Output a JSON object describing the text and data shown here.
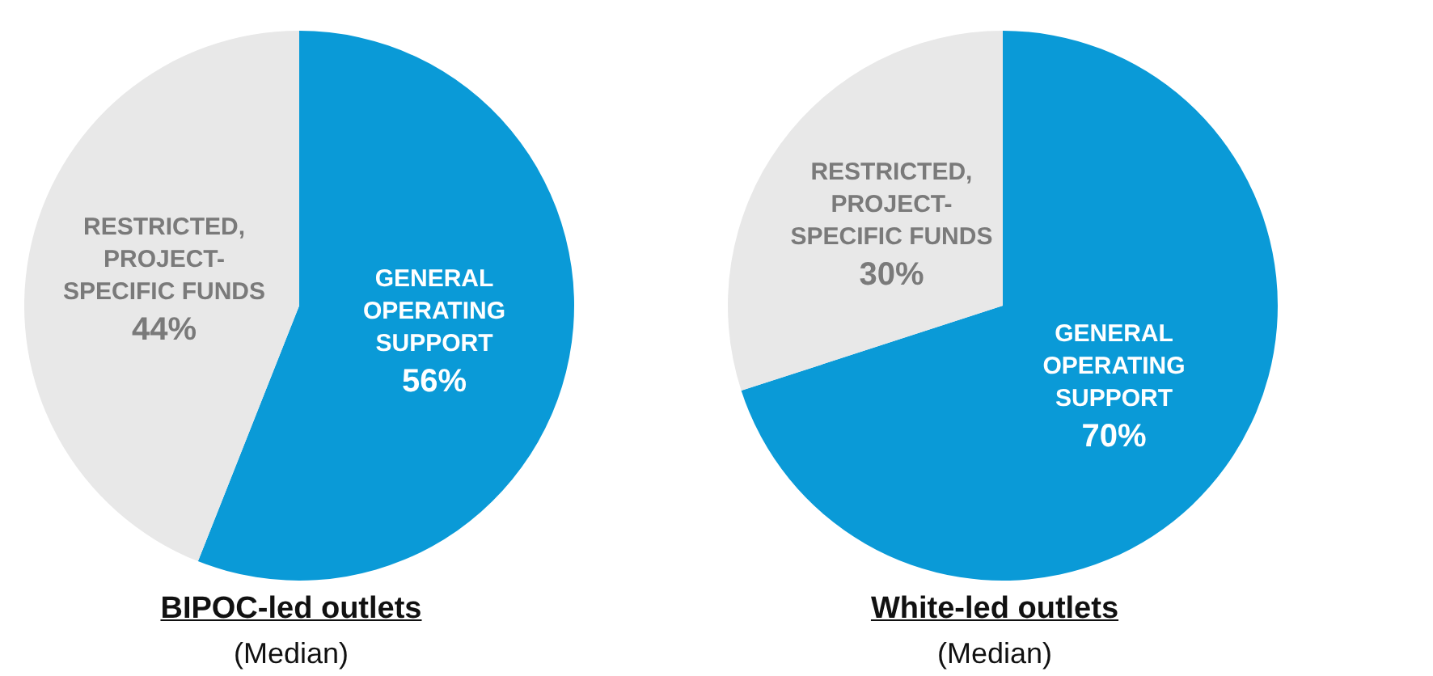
{
  "chart_data": [
    {
      "type": "pie",
      "title": "BIPOC-led outlets",
      "subtitle": "(Median)",
      "categories": [
        "GENERAL\nOPERATING\nSUPPORT",
        "RESTRICTED,\nPROJECT-\nSPECIFIC FUNDS"
      ],
      "values": [
        56,
        44
      ],
      "colors": [
        "#0a9ad7",
        "#e8e8e8"
      ],
      "value_labels": [
        "56%",
        "44%"
      ]
    },
    {
      "type": "pie",
      "title": "White-led outlets",
      "subtitle": "(Median)",
      "categories": [
        "GENERAL\nOPERATING\nSUPPORT",
        "RESTRICTED,\nPROJECT-\nSPECIFIC FUNDS"
      ],
      "values": [
        70,
        30
      ],
      "colors": [
        "#0a9ad7",
        "#e8e8e8"
      ],
      "value_labels": [
        "70%",
        "30%"
      ]
    }
  ]
}
